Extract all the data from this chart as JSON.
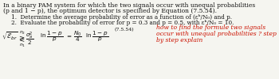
{
  "bg_color": "#f5f5f0",
  "main_line1": "In a binary PAM system for which the two signals occur with unequal probabilities",
  "main_line2": "(p and 1 − p), the optimum detector is specified by Equation (7.5.54).",
  "item1": "1.  Determine the average probability of error as a function of (εᵇ/N₀) and p.",
  "item2": "2.  Evaluate the probability of error for p = 0.3 and p = 0.5, with εᵇ/N₀ = 10.",
  "red_line1": "how to find the formule two signals",
  "red_line2": "occur with unequal probabilities ? step",
  "red_line3": "by step explain",
  "eq_label": "(7.5.54)",
  "red_color": "#cc1100",
  "black": "#111111",
  "fs_main": 5.5,
  "fs_item": 5.2,
  "fs_red": 5.5,
  "fs_eq": 5.2
}
